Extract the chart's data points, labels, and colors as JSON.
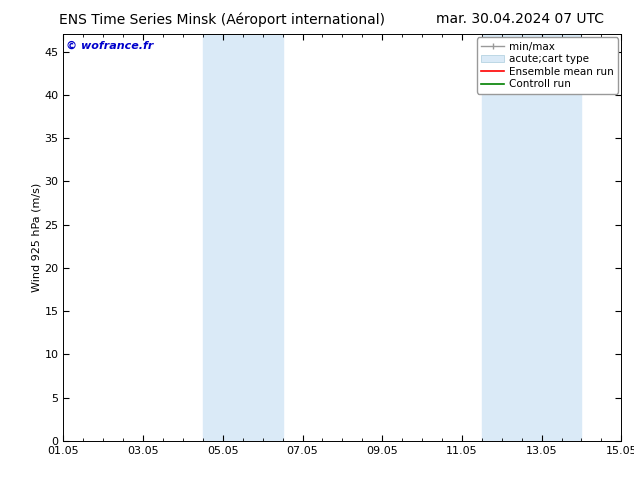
{
  "title_left": "ENS Time Series Minsk (Aéroport international)",
  "title_right": "mar. 30.04.2024 07 UTC",
  "ylabel": "Wind 925 hPa (m/s)",
  "watermark": "© wofrance.fr",
  "ylim": [
    0,
    47
  ],
  "yticks": [
    0,
    5,
    10,
    15,
    20,
    25,
    30,
    35,
    40,
    45
  ],
  "xtick_labels": [
    "01.05",
    "03.05",
    "05.05",
    "07.05",
    "09.05",
    "11.05",
    "13.05",
    "15.05"
  ],
  "xtick_positions": [
    0,
    2,
    4,
    6,
    8,
    10,
    12,
    14
  ],
  "xlim": [
    0,
    14
  ],
  "shade_bands": [
    {
      "x_start": 3.5,
      "x_end": 5.5
    },
    {
      "x_start": 10.5,
      "x_end": 13.0
    }
  ],
  "shade_color": "#daeaf7",
  "background_color": "#ffffff",
  "title_fontsize": 10,
  "watermark_color": "#0000cc",
  "watermark_fontsize": 8,
  "tick_fontsize": 8,
  "ylabel_fontsize": 8,
  "legend_fontsize": 7.5
}
